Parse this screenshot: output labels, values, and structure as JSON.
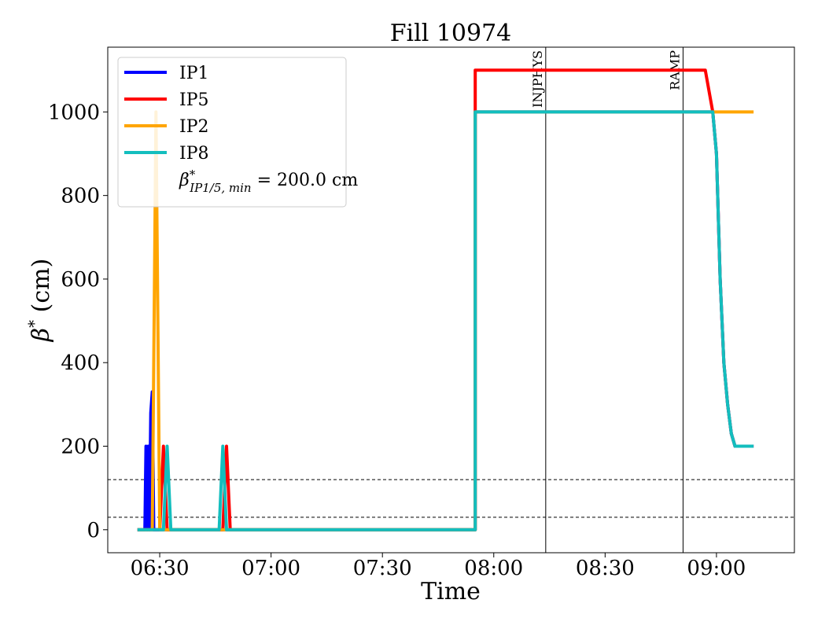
{
  "chart_data": {
    "type": "line",
    "title": "Fill 10974",
    "xlabel": "Time",
    "ylabel": "β* (cm)",
    "x_ticks": [
      "06:30",
      "07:00",
      "07:30",
      "08:00",
      "08:30",
      "09:00"
    ],
    "y_ticks": [
      0,
      200,
      400,
      600,
      800,
      1000
    ],
    "xlim": [
      "06:16",
      "09:21"
    ],
    "ylim": [
      -55,
      1155
    ],
    "legend_position": "top-left",
    "legend_note": "β*IP1/5, min = 200.0 cm",
    "hlines": [
      30,
      120
    ],
    "vlines": [
      {
        "time": "08:14",
        "label": "INJPHYS"
      },
      {
        "time": "08:51",
        "label": "RAMP"
      }
    ],
    "series": [
      {
        "name": "IP1",
        "color": "#0000ff",
        "x": [
          "06:24",
          "06:26",
          "06:26.3",
          "06:26.6",
          "06:26.9",
          "06:27.2",
          "06:27.6",
          "06:28",
          "06:28.4",
          "06:29",
          "06:35",
          "06:47",
          "06:48",
          "07:55",
          "07:55.01",
          "08:57",
          "08:59",
          "09:00",
          "09:01",
          "09:02",
          "09:03",
          "09:04",
          "09:05",
          "09:10"
        ],
        "y": [
          0,
          0,
          200,
          0,
          200,
          0,
          280,
          330,
          0,
          0,
          0,
          0,
          0,
          0,
          1000,
          1000,
          1000,
          900,
          600,
          400,
          300,
          230,
          200,
          200
        ]
      },
      {
        "name": "IP5",
        "color": "#ff0000",
        "x": [
          "06:24",
          "06:29",
          "06:30",
          "06:31",
          "06:32",
          "06:47",
          "06:48",
          "06:49",
          "06:50",
          "07:55",
          "07:55.01",
          "08:57",
          "08:59",
          "09:00",
          "09:01",
          "09:02",
          "09:03",
          "09:04",
          "09:05",
          "09:10"
        ],
        "y": [
          0,
          0,
          0,
          200,
          0,
          0,
          200,
          0,
          0,
          0,
          1100,
          1100,
          1000,
          900,
          600,
          400,
          300,
          230,
          200,
          200
        ]
      },
      {
        "name": "IP2",
        "color": "#ffa500",
        "x": [
          "06:24",
          "06:28",
          "06:29",
          "06:30",
          "06:35",
          "07:55",
          "07:55.01",
          "08:57",
          "09:10"
        ],
        "y": [
          0,
          0,
          1000,
          0,
          0,
          0,
          1000,
          1000,
          1000
        ]
      },
      {
        "name": "IP8",
        "color": "#13bebe",
        "x": [
          "06:24",
          "06:31",
          "06:32",
          "06:33",
          "06:46",
          "06:47",
          "06:48",
          "07:55",
          "07:55.01",
          "08:57",
          "08:59",
          "09:00",
          "09:01",
          "09:02",
          "09:03",
          "09:04",
          "09:05",
          "09:10"
        ],
        "y": [
          0,
          0,
          200,
          0,
          0,
          200,
          0,
          0,
          1000,
          1000,
          1000,
          900,
          600,
          400,
          300,
          230,
          200,
          200
        ]
      }
    ]
  }
}
